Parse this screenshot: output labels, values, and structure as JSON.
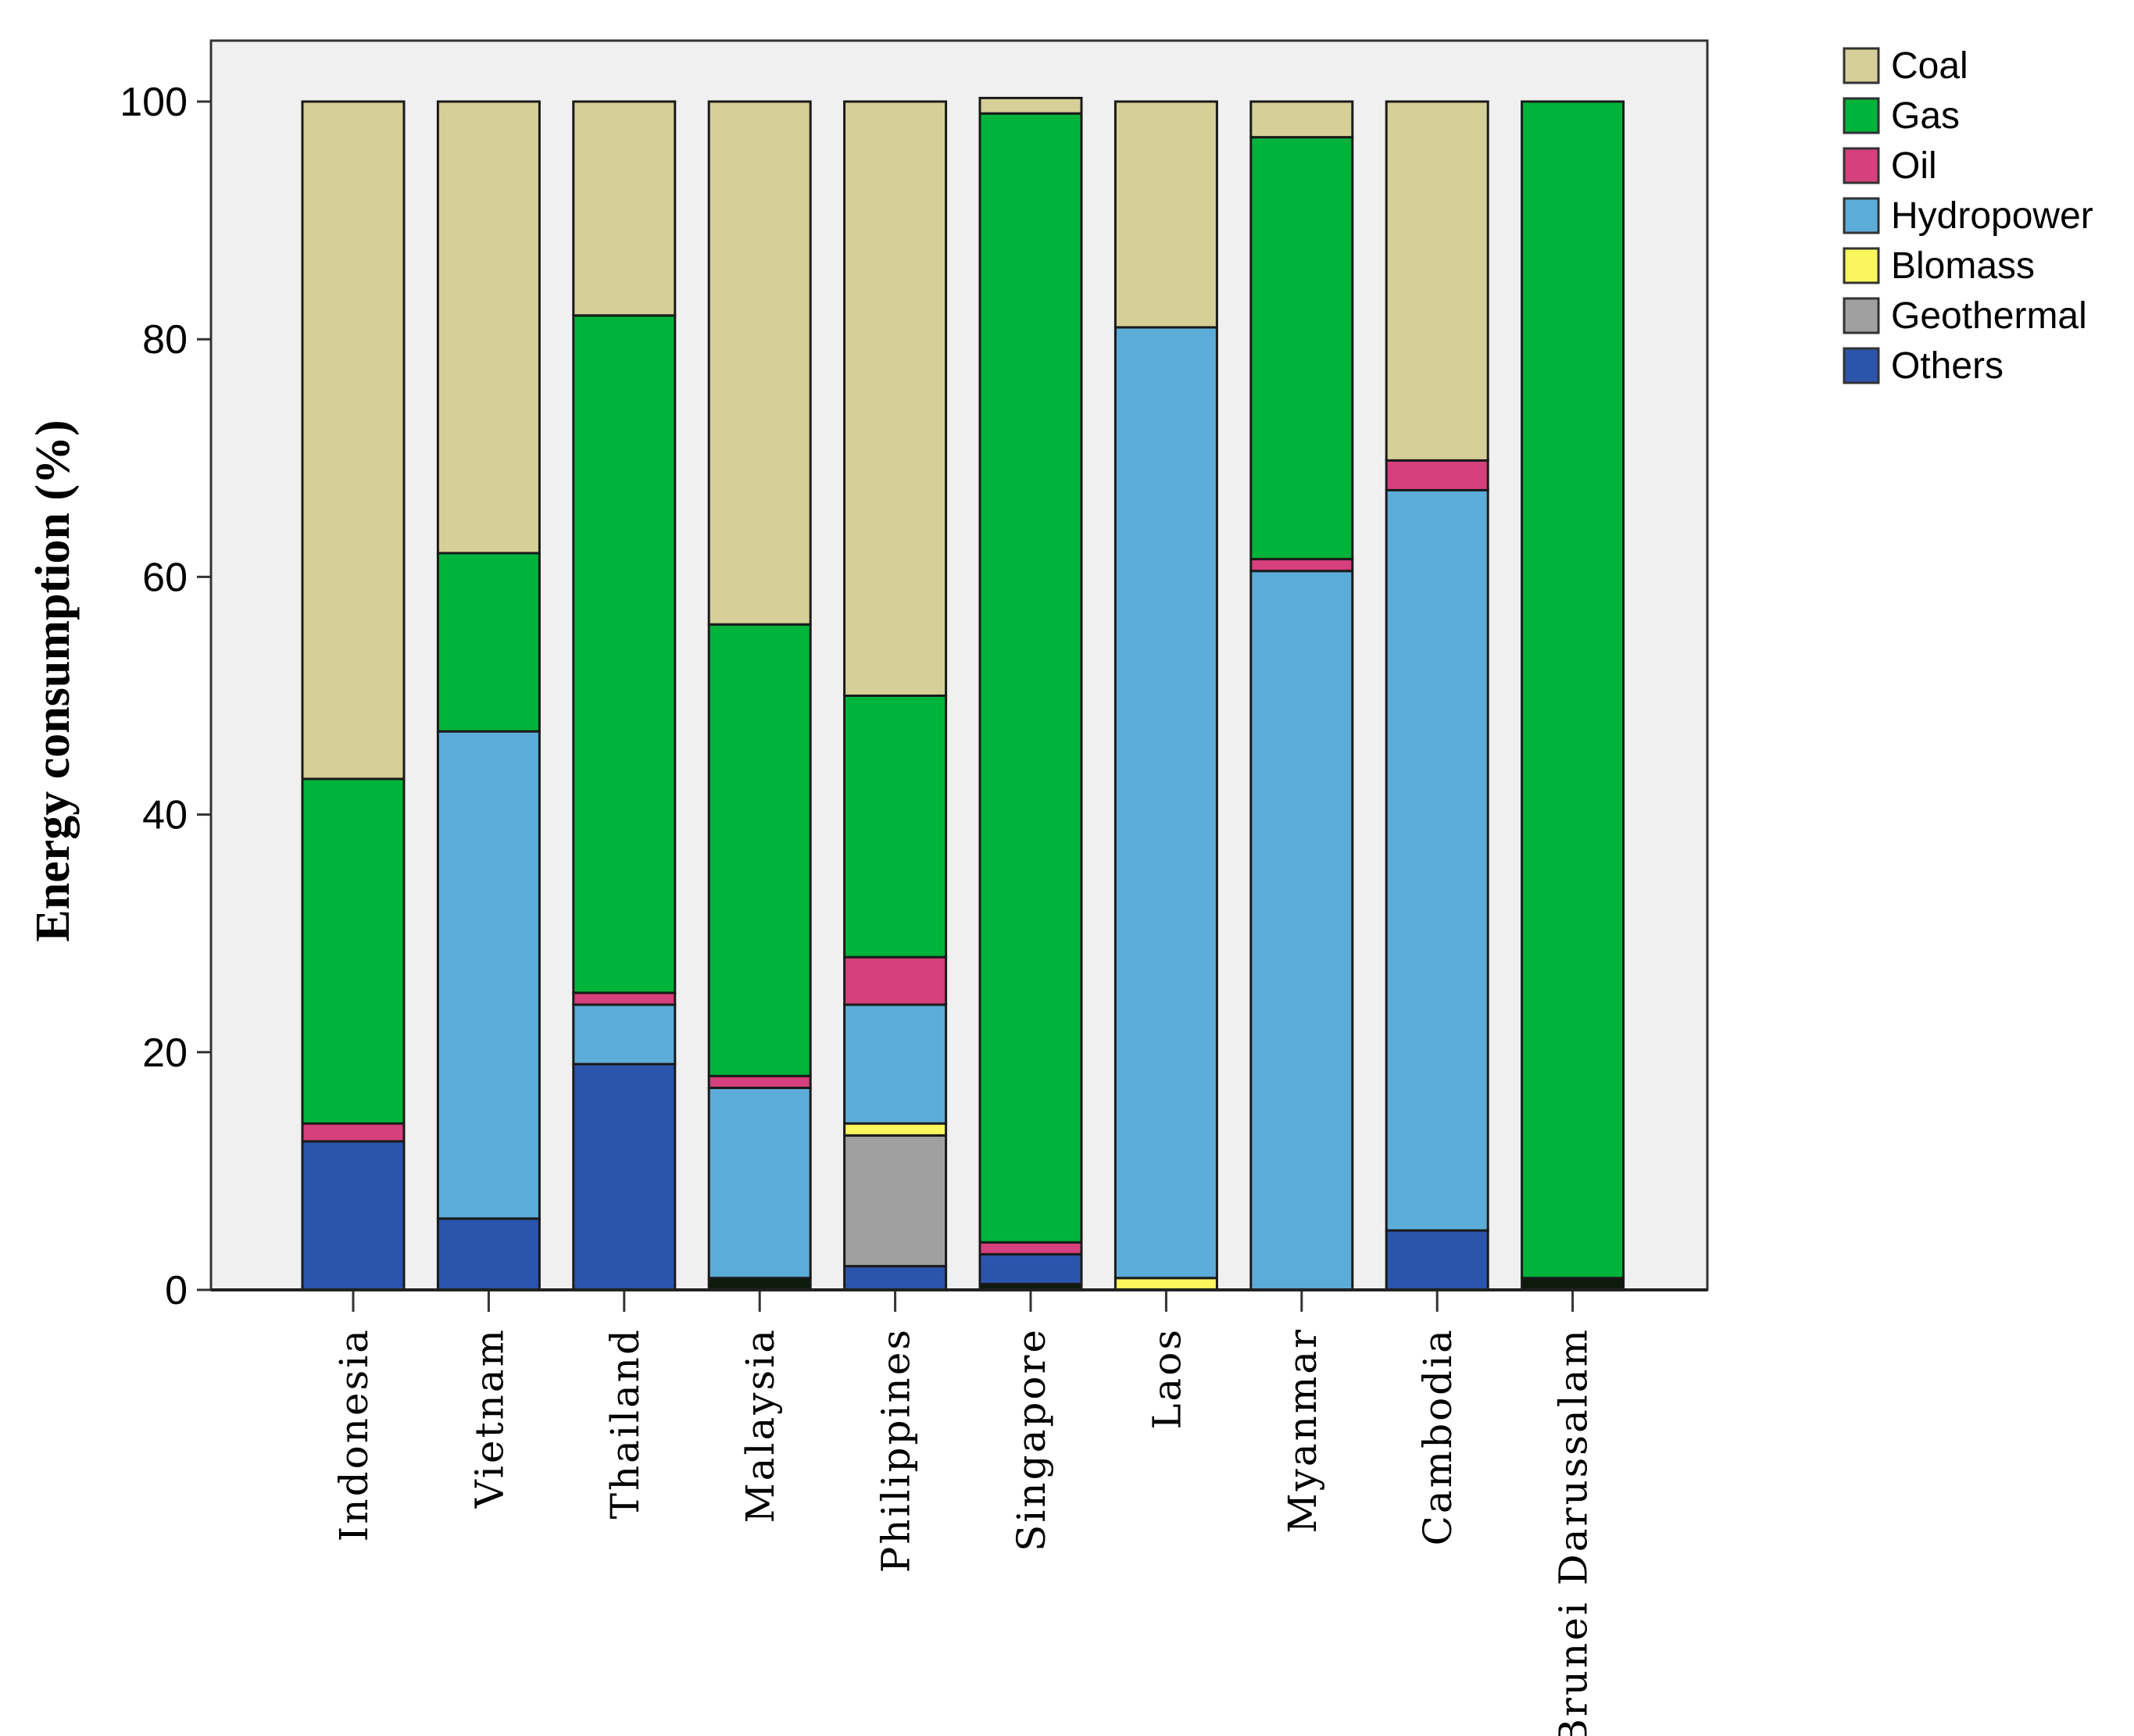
{
  "chart_data": {
    "type": "bar",
    "stacked": true,
    "title": "",
    "xlabel": "",
    "ylabel": "Energy consumption (%)",
    "ylim": [
      0,
      105
    ],
    "yticks": [
      0,
      20,
      40,
      60,
      80,
      100
    ],
    "ytick_labels": [
      "0",
      "20",
      "40",
      "60",
      "80",
      "100"
    ],
    "legend_position": "top-right outside",
    "categories": [
      "Indonesia",
      "Vietnam",
      "Thailand",
      "Malaysia",
      "Philippines",
      "Singapore",
      "Laos",
      "Myanmar",
      "Cambodia",
      "Brunei Darussalam"
    ],
    "series": [
      {
        "name": "Others",
        "color": "#2b55ac",
        "values": [
          12.5,
          6,
          19,
          0,
          2,
          2.5,
          0,
          0,
          5,
          0
        ]
      },
      {
        "name": "Geothermal",
        "color": "#a0a0a0",
        "values": [
          0,
          0,
          0,
          0,
          11,
          0,
          0,
          0,
          0,
          0
        ]
      },
      {
        "name": "Biomass",
        "color": "#fbf65e",
        "values": [
          0,
          0,
          0,
          0,
          1,
          0,
          1,
          0,
          0,
          0
        ]
      },
      {
        "name": "Hydropower",
        "color": "#5cacd8",
        "values": [
          0,
          41,
          5,
          16,
          10,
          0,
          80,
          60.5,
          62.3,
          0
        ]
      },
      {
        "name": "Oil",
        "color": "#d6407c",
        "values": [
          1.5,
          0,
          1,
          1,
          4,
          1,
          0,
          1,
          2.5,
          0
        ]
      },
      {
        "name": "Gas",
        "color": "#00b43b",
        "values": [
          29,
          15,
          57,
          38,
          22,
          95,
          0,
          35.5,
          0,
          99
        ]
      },
      {
        "name": "Coal",
        "color": "#d6cf97",
        "values": [
          57,
          38,
          18,
          44,
          50,
          1.3,
          19,
          3,
          30.2,
          0
        ]
      }
    ],
    "dark_base": {
      "name": "",
      "color": "#0d1a0d",
      "values": [
        0,
        0,
        0,
        1,
        0,
        0.5,
        0,
        0,
        0,
        1
      ]
    },
    "legend_order": [
      "Coal",
      "Gas",
      "Oil",
      "Hydropower",
      "Blomass",
      "Geothermal",
      "Others"
    ],
    "legend_colors": [
      "#d6cf97",
      "#00b43b",
      "#d6407c",
      "#5cacd8",
      "#fbf65e",
      "#a0a0a0",
      "#2b55ac"
    ],
    "plot_background": "#f0f0f0"
  }
}
